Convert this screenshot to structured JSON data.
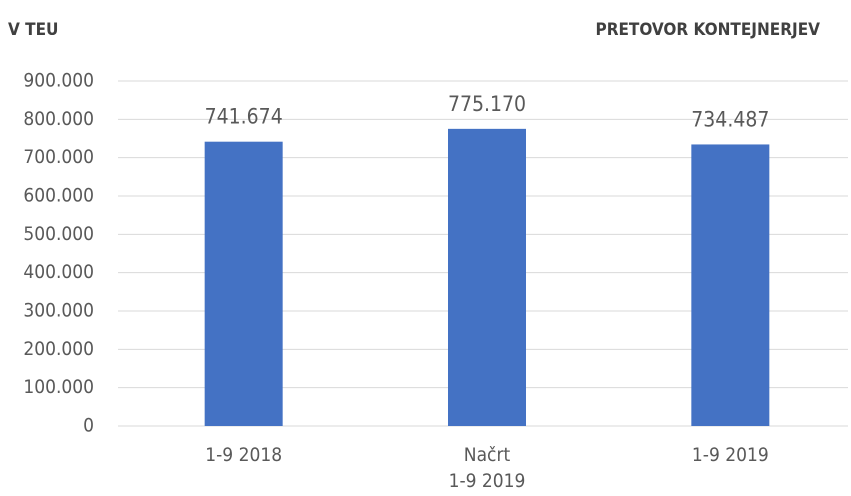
{
  "chart_data": {
    "type": "bar",
    "title": "PRETOVOR KONTEJNERJEV",
    "ylabel": "V TEU",
    "categories": [
      "1-9 2018",
      "Načrt\n1-9 2019",
      "1-9 2019"
    ],
    "values": [
      741674,
      775170,
      734487
    ],
    "value_labels": [
      "741.674",
      "775.170",
      "734.487"
    ],
    "color": "#4472c4",
    "ylim": [
      0,
      900000
    ],
    "yticks": [
      0,
      {
        "value": 100000,
        "label": "100.000"
      },
      {
        "value": 200000,
        "label": "200.000"
      },
      {
        "value": 300000,
        "label": "300.000"
      },
      {
        "value": 400000,
        "label": "400.000"
      },
      {
        "value": 500000,
        "label": "500.000"
      },
      {
        "value": 600000,
        "label": "600.000"
      },
      {
        "value": 700000,
        "label": "700.000"
      },
      {
        "value": 800000,
        "label": "800.000"
      },
      {
        "value": 900000,
        "label": "900.000"
      }
    ],
    "grid": true
  }
}
